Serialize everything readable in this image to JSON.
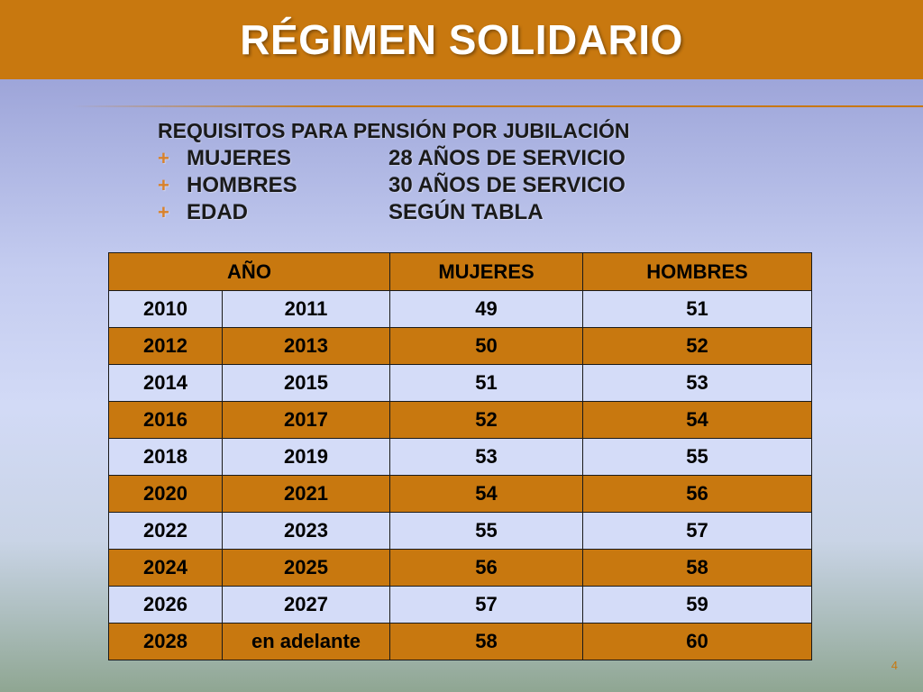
{
  "slide": {
    "title": "RÉGIMEN SOLIDARIO",
    "page_number": "4"
  },
  "requirements": {
    "heading": "REQUISITOS PARA PENSIÓN POR JUBILACIÓN",
    "bullet": "+",
    "items": [
      {
        "label": "MUJERES",
        "value": "28 AÑOS DE SERVICIO"
      },
      {
        "label": "HOMBRES",
        "value": "30 AÑOS DE SERVICIO"
      },
      {
        "label": "EDAD",
        "value": "SEGÚN TABLA"
      }
    ]
  },
  "table": {
    "headers": {
      "year": "AÑO",
      "women": "MUJERES",
      "men": "HOMBRES"
    },
    "rows": [
      [
        "2010",
        "2011",
        "49",
        "51"
      ],
      [
        "2012",
        "2013",
        "50",
        "52"
      ],
      [
        "2014",
        "2015",
        "51",
        "53"
      ],
      [
        "2016",
        "2017",
        "52",
        "54"
      ],
      [
        "2018",
        "2019",
        "53",
        "55"
      ],
      [
        "2020",
        "2021",
        "54",
        "56"
      ],
      [
        "2022",
        "2023",
        "55",
        "57"
      ],
      [
        "2024",
        "2025",
        "56",
        "58"
      ],
      [
        "2026",
        "2027",
        "57",
        "59"
      ],
      [
        "2028",
        "en adelante",
        "58",
        "60"
      ]
    ]
  },
  "colors": {
    "accent": "#c8780f",
    "light_row": "#d4dcf8",
    "text": "#000000"
  }
}
